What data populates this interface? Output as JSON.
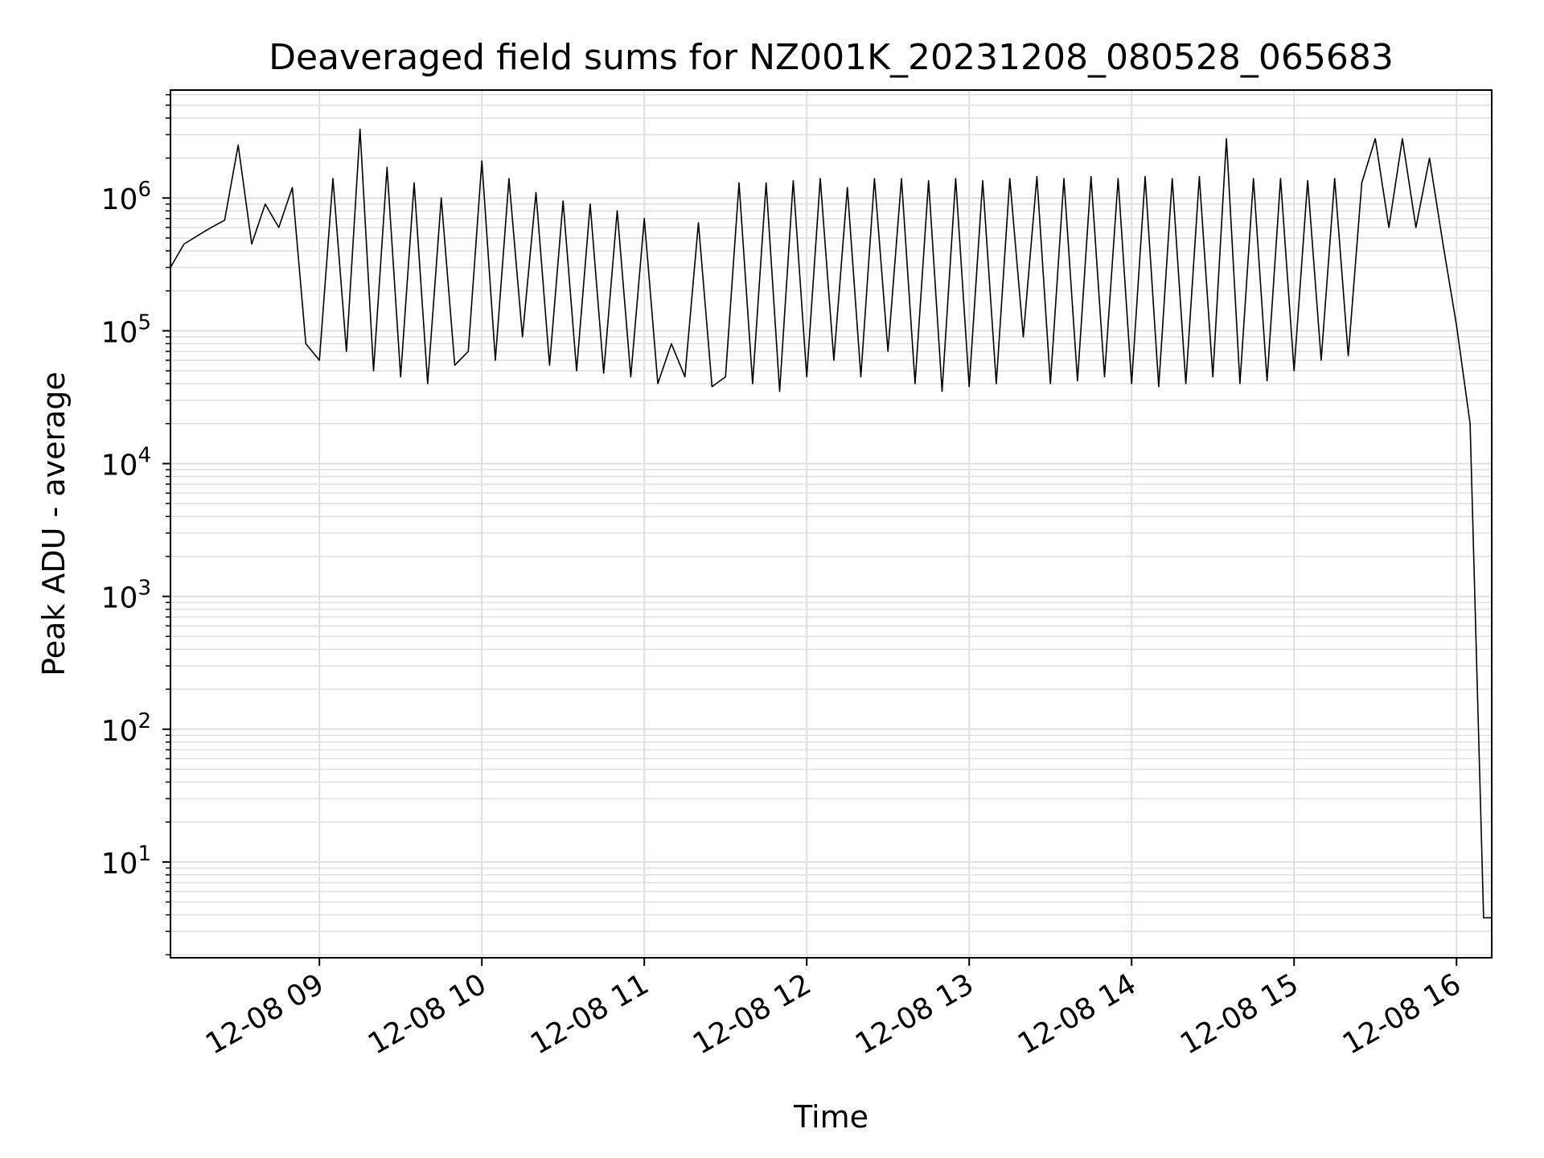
{
  "chart_data": {
    "type": "line",
    "title": "Deaveraged field sums for NZ001K_20231208_080528_065683",
    "xlabel": "Time",
    "ylabel": "Peak ADU - average",
    "y_scale": "log",
    "grid": true,
    "minor_grid": true,
    "line_color": "#000000",
    "grid_color": "#e0e0e0",
    "xlim": [
      "2023-12-08 08:05",
      "2023-12-08 16:13"
    ],
    "ylim": [
      1.9,
      6500000
    ],
    "x_ticks": [
      {
        "value": "2023-12-08 09:00",
        "label": "12-08 09"
      },
      {
        "value": "2023-12-08 10:00",
        "label": "12-08 10"
      },
      {
        "value": "2023-12-08 11:00",
        "label": "12-08 11"
      },
      {
        "value": "2023-12-08 12:00",
        "label": "12-08 12"
      },
      {
        "value": "2023-12-08 13:00",
        "label": "12-08 13"
      },
      {
        "value": "2023-12-08 14:00",
        "label": "12-08 14"
      },
      {
        "value": "2023-12-08 15:00",
        "label": "12-08 15"
      },
      {
        "value": "2023-12-08 16:00",
        "label": "12-08 16"
      }
    ],
    "y_ticks": [
      {
        "value": 10,
        "base": "10",
        "exp": "1"
      },
      {
        "value": 100,
        "base": "10",
        "exp": "2"
      },
      {
        "value": 1000,
        "base": "10",
        "exp": "3"
      },
      {
        "value": 10000,
        "base": "10",
        "exp": "4"
      },
      {
        "value": 100000,
        "base": "10",
        "exp": "5"
      },
      {
        "value": 1000000,
        "base": "10",
        "exp": "6"
      }
    ],
    "series": [
      {
        "x": [
          "2023-12-08 08:05",
          "2023-12-08 08:10",
          "2023-12-08 08:15",
          "2023-12-08 08:20",
          "2023-12-08 08:25",
          "2023-12-08 08:30",
          "2023-12-08 08:35",
          "2023-12-08 08:40",
          "2023-12-08 08:45",
          "2023-12-08 08:50",
          "2023-12-08 08:55",
          "2023-12-08 09:00",
          "2023-12-08 09:05",
          "2023-12-08 09:10",
          "2023-12-08 09:15",
          "2023-12-08 09:20",
          "2023-12-08 09:25",
          "2023-12-08 09:30",
          "2023-12-08 09:35",
          "2023-12-08 09:40",
          "2023-12-08 09:45",
          "2023-12-08 09:50",
          "2023-12-08 09:55",
          "2023-12-08 10:00",
          "2023-12-08 10:05",
          "2023-12-08 10:10",
          "2023-12-08 10:15",
          "2023-12-08 10:20",
          "2023-12-08 10:25",
          "2023-12-08 10:30",
          "2023-12-08 10:35",
          "2023-12-08 10:40",
          "2023-12-08 10:45",
          "2023-12-08 10:50",
          "2023-12-08 10:55",
          "2023-12-08 11:00",
          "2023-12-08 11:05",
          "2023-12-08 11:10",
          "2023-12-08 11:15",
          "2023-12-08 11:20",
          "2023-12-08 11:25",
          "2023-12-08 11:30",
          "2023-12-08 11:35",
          "2023-12-08 11:40",
          "2023-12-08 11:45",
          "2023-12-08 11:50",
          "2023-12-08 11:55",
          "2023-12-08 12:00",
          "2023-12-08 12:05",
          "2023-12-08 12:10",
          "2023-12-08 12:15",
          "2023-12-08 12:20",
          "2023-12-08 12:25",
          "2023-12-08 12:30",
          "2023-12-08 12:35",
          "2023-12-08 12:40",
          "2023-12-08 12:45",
          "2023-12-08 12:50",
          "2023-12-08 12:55",
          "2023-12-08 13:00",
          "2023-12-08 13:05",
          "2023-12-08 13:10",
          "2023-12-08 13:15",
          "2023-12-08 13:20",
          "2023-12-08 13:25",
          "2023-12-08 13:30",
          "2023-12-08 13:35",
          "2023-12-08 13:40",
          "2023-12-08 13:45",
          "2023-12-08 13:50",
          "2023-12-08 13:55",
          "2023-12-08 14:00",
          "2023-12-08 14:05",
          "2023-12-08 14:10",
          "2023-12-08 14:15",
          "2023-12-08 14:20",
          "2023-12-08 14:25",
          "2023-12-08 14:30",
          "2023-12-08 14:35",
          "2023-12-08 14:40",
          "2023-12-08 14:45",
          "2023-12-08 14:50",
          "2023-12-08 14:55",
          "2023-12-08 15:00",
          "2023-12-08 15:05",
          "2023-12-08 15:10",
          "2023-12-08 15:15",
          "2023-12-08 15:20",
          "2023-12-08 15:25",
          "2023-12-08 15:30",
          "2023-12-08 15:35",
          "2023-12-08 15:40",
          "2023-12-08 15:45",
          "2023-12-08 15:50",
          "2023-12-08 15:55",
          "2023-12-08 16:00",
          "2023-12-08 16:05",
          "2023-12-08 16:10",
          "2023-12-08 16:13"
        ],
        "y": [
          300000,
          450000,
          520000,
          600000,
          680000,
          2500000,
          450000,
          900000,
          600000,
          1200000,
          80000,
          60000,
          1400000,
          70000,
          3300000,
          50000,
          1700000,
          45000,
          1300000,
          40000,
          1000000,
          55000,
          70000,
          1900000,
          60000,
          1400000,
          90000,
          1100000,
          55000,
          950000,
          50000,
          900000,
          48000,
          800000,
          45000,
          700000,
          40000,
          80000,
          45000,
          650000,
          38000,
          45000,
          1300000,
          40000,
          1300000,
          35000,
          1350000,
          45000,
          1400000,
          60000,
          1200000,
          45000,
          1400000,
          70000,
          1400000,
          40000,
          1350000,
          35000,
          1400000,
          38000,
          1350000,
          40000,
          1400000,
          90000,
          1450000,
          40000,
          1400000,
          42000,
          1450000,
          45000,
          1400000,
          40000,
          1450000,
          38000,
          1400000,
          40000,
          1450000,
          45000,
          2800000,
          40000,
          1400000,
          42000,
          1400000,
          50000,
          1350000,
          60000,
          1400000,
          65000,
          1300000,
          2800000,
          600000,
          2800000,
          600000,
          2000000,
          450000,
          110000,
          20000,
          3.8,
          3.8
        ]
      }
    ]
  }
}
